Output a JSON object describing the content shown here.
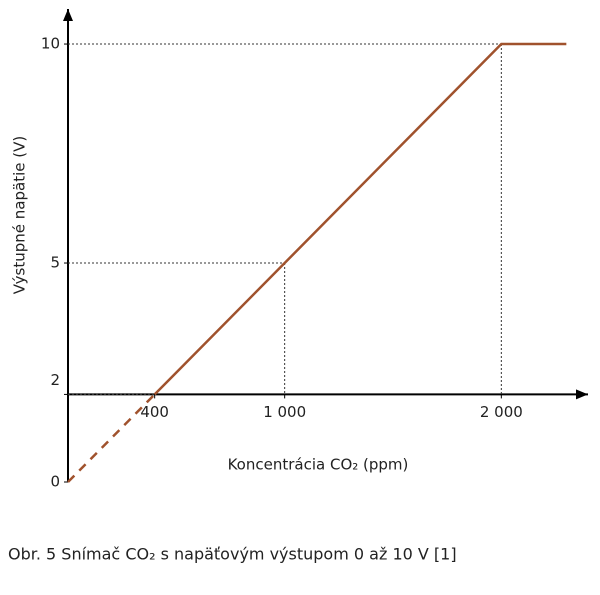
{
  "chart_data": {
    "type": "line",
    "y_label": "Výstupné napätie (V)",
    "x_label": "Koncentrácia CO₂ (ppm)",
    "caption": "Obr. 5  Snímač CO₂ s napäťovým výstupom 0 až 10 V [1]",
    "series": [
      {
        "color": "#a0522d",
        "dashed": true,
        "x": [
          0,
          400
        ],
        "values": [
          0,
          2
        ]
      },
      {
        "color": "#a0522d",
        "dashed": false,
        "x": [
          400,
          1000,
          2000,
          2300
        ],
        "values": [
          2,
          5,
          10,
          10
        ]
      }
    ],
    "xlim": [
      0,
      2400
    ],
    "ylim": [
      0,
      10.8
    ],
    "xticks": [
      400,
      {
        "value": 1000,
        "label": "1 000"
      },
      {
        "value": 2000,
        "label": "2 000"
      }
    ],
    "yticks": [
      0,
      2,
      5,
      10
    ],
    "x_axis_at": 2,
    "guides": true,
    "grid": false
  }
}
